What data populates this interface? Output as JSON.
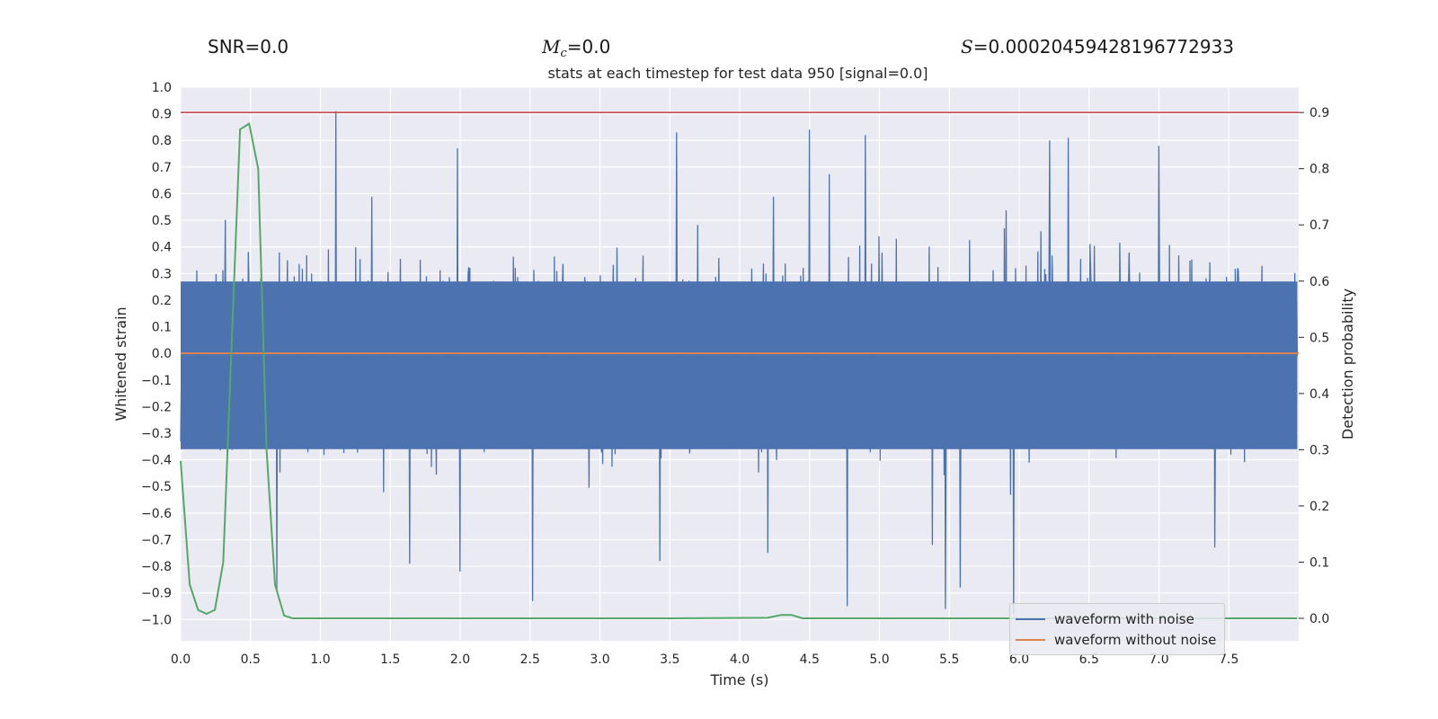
{
  "header": {
    "snr_text": "SNR=0.0",
    "mc_symbol": "M",
    "mc_sub": "c",
    "mc_value": "=0.0",
    "s_symbol": "S",
    "s_value": "=0.00020459428196772933"
  },
  "colors": {
    "background": "#eaeaf2",
    "grid": "#ffffff",
    "noisy": "#4c72b0",
    "clean": "#dd8452",
    "probability": "#55a868",
    "threshold": "#c44e52"
  },
  "chart_data": {
    "type": "line",
    "title": "stats at each timestep for test data 950 [signal=0.0]",
    "xlabel": "Time (s)",
    "ylabel": "Whitened strain",
    "ylabel_right": "Detection probability",
    "xlim": [
      0.0,
      8.0
    ],
    "ylim": [
      -1.08,
      1.0
    ],
    "ylim_right": [
      -0.04,
      0.945
    ],
    "xticks": [
      0.0,
      0.5,
      1.0,
      1.5,
      2.0,
      2.5,
      3.0,
      3.5,
      4.0,
      4.5,
      5.0,
      5.5,
      6.0,
      6.5,
      7.0,
      7.5
    ],
    "xtick_labels": [
      "0.0",
      "0.5",
      "1.0",
      "1.5",
      "2.0",
      "2.5",
      "3.0",
      "3.5",
      "4.0",
      "4.5",
      "5.0",
      "5.5",
      "6.0",
      "6.5",
      "7.0",
      "7.5"
    ],
    "yticks": [
      1.0,
      0.9,
      0.8,
      0.7,
      0.6,
      0.5,
      0.4,
      0.3,
      0.2,
      0.1,
      0.0,
      -0.1,
      -0.2,
      -0.3,
      -0.4,
      -0.5,
      -0.6,
      -0.7,
      -0.8,
      -0.9,
      -1.0
    ],
    "ytick_labels": [
      "1.0",
      "0.9",
      "0.8",
      "0.7",
      "0.6",
      "0.5",
      "0.4",
      "0.3",
      "0.2",
      "0.1",
      "0.0",
      "−0.1",
      "−0.2",
      "−0.3",
      "−0.4",
      "−0.5",
      "−0.6",
      "−0.7",
      "−0.8",
      "−0.9",
      "−1.0"
    ],
    "yticks_right": [
      0.9,
      0.8,
      0.7,
      0.6,
      0.5,
      0.4,
      0.3,
      0.2,
      0.1,
      0.0
    ],
    "ytick_labels_right": [
      "0.9",
      "0.8",
      "0.7",
      "0.6",
      "0.5",
      "0.4",
      "0.3",
      "0.2",
      "0.1",
      "0.0"
    ],
    "threshold": 0.9,
    "series": [
      {
        "name": "waveform with noise",
        "kind": "noise",
        "t_range": [
          0.0,
          7.99
        ],
        "samples": 1800,
        "envelope": 0.27,
        "spikes": [
          {
            "t": 1.11,
            "v": 0.91
          },
          {
            "t": 2.52,
            "v": -0.93
          },
          {
            "t": 3.55,
            "v": 0.83
          },
          {
            "t": 4.5,
            "v": 0.84
          },
          {
            "t": 4.77,
            "v": -0.95
          },
          {
            "t": 4.9,
            "v": 0.82
          },
          {
            "t": 5.47,
            "v": -0.96
          },
          {
            "t": 5.58,
            "v": -0.88
          },
          {
            "t": 5.96,
            "v": -0.98
          },
          {
            "t": 6.22,
            "v": 0.8
          },
          {
            "t": 6.35,
            "v": 0.81
          },
          {
            "t": 0.69,
            "v": -0.89
          },
          {
            "t": 1.64,
            "v": -0.79
          },
          {
            "t": 2.0,
            "v": -0.82
          },
          {
            "t": 3.43,
            "v": -0.78
          },
          {
            "t": 4.2,
            "v": -0.75
          },
          {
            "t": 5.38,
            "v": -0.72
          },
          {
            "t": 7.0,
            "v": 0.78
          },
          {
            "t": 1.98,
            "v": 0.77
          },
          {
            "t": 7.4,
            "v": -0.73
          }
        ]
      },
      {
        "name": "waveform without noise",
        "kind": "flat",
        "x": [
          0.0,
          8.0
        ],
        "y": [
          0.0,
          0.0
        ]
      },
      {
        "name": "detection probability",
        "kind": "right_axis",
        "x": [
          0.0,
          0.065,
          0.125,
          0.185,
          0.245,
          0.305,
          0.365,
          0.425,
          0.49,
          0.555,
          0.615,
          0.675,
          0.74,
          0.8,
          1.5,
          2.5,
          3.5,
          4.2,
          4.3,
          4.37,
          4.45,
          5.0,
          6.0,
          7.0,
          7.99
        ],
        "y": [
          0.28,
          0.06,
          0.015,
          0.008,
          0.015,
          0.1,
          0.49,
          0.87,
          0.88,
          0.8,
          0.3,
          0.06,
          0.005,
          0.0,
          0.0,
          0.0,
          0.0,
          0.001,
          0.006,
          0.006,
          0.0,
          0.0,
          0.0,
          0.0,
          0.0
        ]
      }
    ],
    "legend": {
      "position": "lower-right",
      "entries": [
        "waveform with noise",
        "waveform without noise"
      ]
    }
  }
}
